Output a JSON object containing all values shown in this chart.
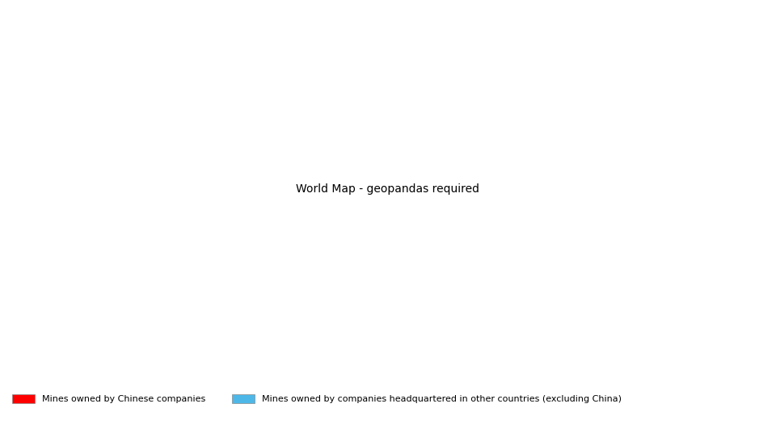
{
  "ocean_color": "#b8cfe8",
  "land_color": "#f0ece4",
  "border_color": "#c8b89a",
  "chinese_mine_color": "#ff0000",
  "other_mine_color": "#4db8e8",
  "legend_text_1": "Mines owned by Chinese companies",
  "legend_text_2": "Mines owned by companies headquartered in other countries (excluding China)",
  "legend_patch_color_1": "#ff0000",
  "legend_patch_color_2": "#4db8e8",
  "legend_fontsize": 8,
  "point_size": 2,
  "chinese_alpha": 0.85,
  "other_alpha": 0.6,
  "fig_width": 9.6,
  "fig_height": 5.31,
  "dpi": 100,
  "map_border_color": "#888888",
  "map_border_lw": 0.3
}
